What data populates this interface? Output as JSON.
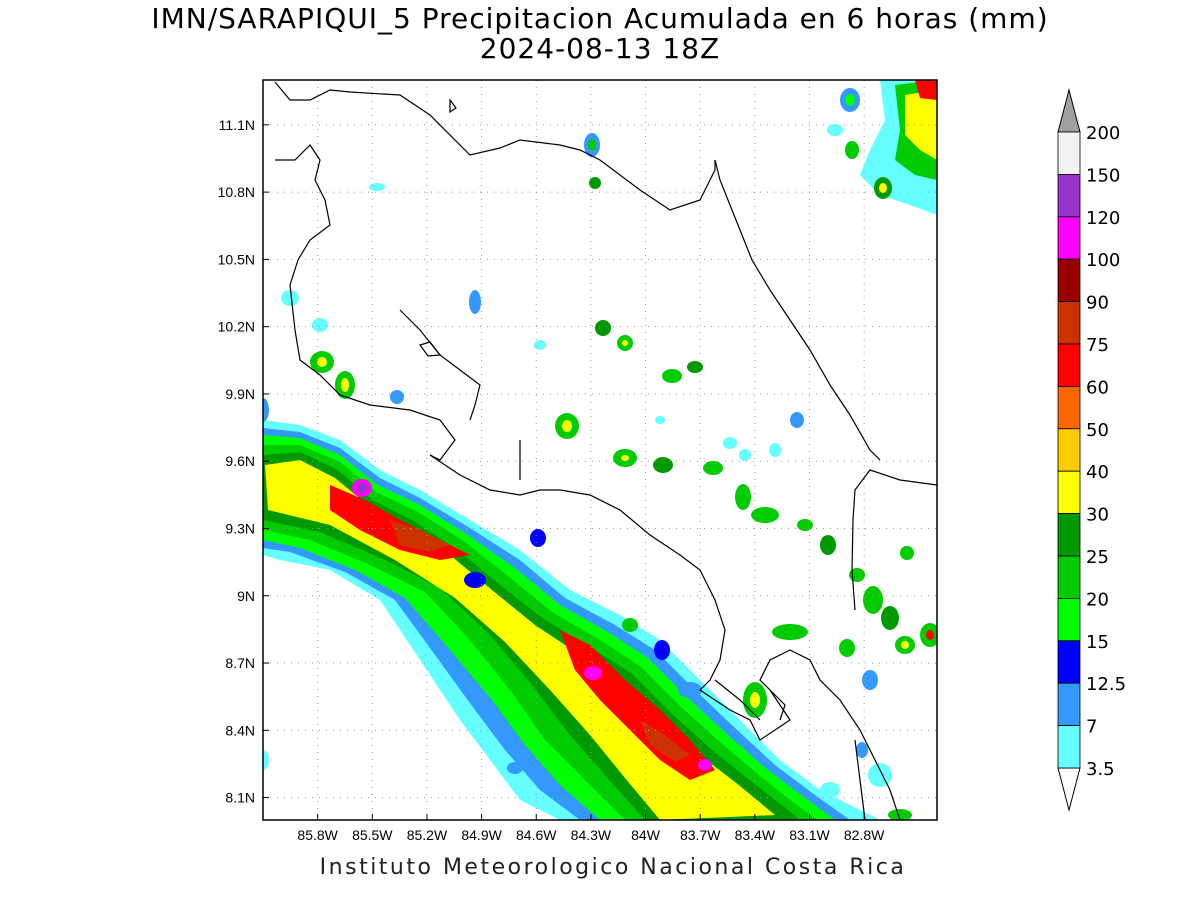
{
  "title_line1": "IMN/SARAPIQUI_5 Precipitacion Acumulada en 6 horas (mm)",
  "title_line2": "2024-08-13 18Z",
  "footer": "Instituto Meteorologico Nacional Costa Rica",
  "map": {
    "lon_range": [
      -86.1,
      -82.4
    ],
    "lat_range": [
      8.0,
      11.3
    ],
    "lon_ticks": [
      "85.8W",
      "85.5W",
      "85.2W",
      "84.9W",
      "84.6W",
      "84.3W",
      "84W",
      "83.7W",
      "83.4W",
      "83.1W",
      "82.8W"
    ],
    "lat_ticks": [
      "11.1N",
      "10.8N",
      "10.5N",
      "10.2N",
      "9.9N",
      "9.6N",
      "9.3N",
      "9N",
      "8.7N",
      "8.4N",
      "8.1N"
    ],
    "grid": "dotted"
  },
  "colorbar": {
    "levels": [
      "200",
      "150",
      "120",
      "100",
      "90",
      "75",
      "60",
      "50",
      "40",
      "30",
      "25",
      "20",
      "15",
      "12.5",
      "7",
      "3.5"
    ],
    "colors": [
      "#f2f2f2",
      "#9933cc",
      "#ff00ff",
      "#990000",
      "#cc3300",
      "#ff0000",
      "#ff6600",
      "#ffcc00",
      "#ffff00",
      "#009900",
      "#00cc00",
      "#00ff00",
      "#0000ff",
      "#3399ff",
      "#66ffff"
    ],
    "over_color": "#a0a0a0"
  }
}
